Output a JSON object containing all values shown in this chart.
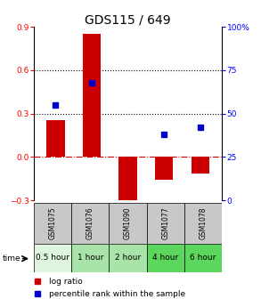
{
  "title": "GDS115 / 649",
  "samples": [
    "GSM1075",
    "GSM1076",
    "GSM1090",
    "GSM1077",
    "GSM1078"
  ],
  "time_labels": [
    "0.5 hour",
    "1 hour",
    "2 hour",
    "4 hour",
    "6 hour"
  ],
  "time_colors": [
    "#e0f5e0",
    "#a8e4a8",
    "#a8e4a8",
    "#5cd65c",
    "#5cd65c"
  ],
  "log_ratios": [
    0.255,
    0.855,
    -0.355,
    -0.155,
    -0.115
  ],
  "percentile_ranks": [
    55,
    68,
    null,
    38,
    42
  ],
  "ylim_left": [
    -0.3,
    0.9
  ],
  "ylim_right": [
    0,
    100
  ],
  "left_yticks": [
    -0.3,
    0.0,
    0.3,
    0.6,
    0.9
  ],
  "right_yticks": [
    0,
    25,
    50,
    75,
    100
  ],
  "hlines_dotted": [
    0.3,
    0.6
  ],
  "hline_dashdot_val": 0.0,
  "bar_color": "#cc0000",
  "marker_color": "#0000cc",
  "bar_width": 0.5,
  "dashdot_color": "#cc0000",
  "title_fontsize": 10,
  "tick_fontsize": 6.5,
  "sample_fontsize": 5.5,
  "time_fontsize": 6.5,
  "legend_fontsize": 6.5,
  "gsm_cell_color": "#c8c8c8"
}
